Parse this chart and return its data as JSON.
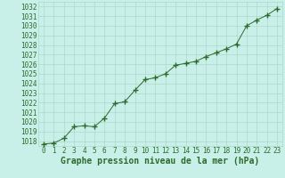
{
  "x": [
    0,
    1,
    2,
    3,
    4,
    5,
    6,
    7,
    8,
    9,
    10,
    11,
    12,
    13,
    14,
    15,
    16,
    17,
    18,
    19,
    20,
    21,
    22,
    23
  ],
  "y": [
    1017.7,
    1017.8,
    1018.3,
    1019.5,
    1019.6,
    1019.5,
    1020.4,
    1021.9,
    1022.1,
    1023.3,
    1024.4,
    1024.6,
    1025.0,
    1025.9,
    1026.1,
    1026.3,
    1026.8,
    1027.2,
    1027.6,
    1028.1,
    1030.0,
    1030.6,
    1031.1,
    1031.8
  ],
  "line_color": "#2d6a2d",
  "marker": "+",
  "marker_size": 4,
  "marker_color": "#2d6a2d",
  "bg_color": "#c8f0e8",
  "grid_color": "#aad8cc",
  "tick_label_color": "#2d6a2d",
  "xlabel": "Graphe pression niveau de la mer (hPa)",
  "xlabel_color": "#2d6a2d",
  "xlim": [
    -0.5,
    23.5
  ],
  "ylim": [
    1017.5,
    1032.5
  ],
  "yticks": [
    1018,
    1019,
    1020,
    1021,
    1022,
    1023,
    1024,
    1025,
    1026,
    1027,
    1028,
    1029,
    1030,
    1031,
    1032
  ],
  "xticks": [
    0,
    1,
    2,
    3,
    4,
    5,
    6,
    7,
    8,
    9,
    10,
    11,
    12,
    13,
    14,
    15,
    16,
    17,
    18,
    19,
    20,
    21,
    22,
    23
  ],
  "tick_fontsize": 5.5,
  "xlabel_fontsize": 7.0
}
